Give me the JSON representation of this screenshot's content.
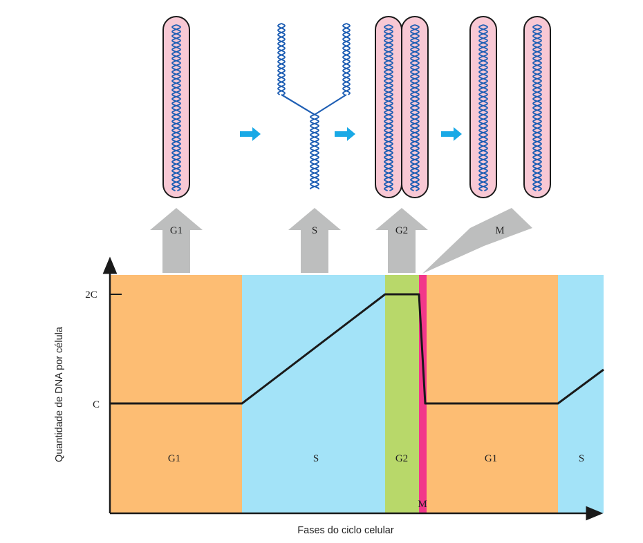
{
  "colors": {
    "g1": "#fdbd73",
    "s": "#a3e3f8",
    "g2": "#b8d86a",
    "m": "#f2378a",
    "curve": "#1a1a1a",
    "chromosome_fill": "#f8c8d4",
    "helix": "#1f5fb4",
    "phase_arrow": "#bdbebe",
    "step_arrow": "#19a9e6"
  },
  "axes": {
    "y_title": "Quantidade de DNA por célula",
    "x_title": "Fases do ciclo celular",
    "y_ticks": [
      "C",
      "2C"
    ]
  },
  "phase_bands": [
    {
      "name": "G1",
      "color_key": "g1"
    },
    {
      "name": "S",
      "color_key": "s"
    },
    {
      "name": "G2",
      "color_key": "g2"
    },
    {
      "name": "M",
      "color_key": "m"
    },
    {
      "name": "G1",
      "color_key": "g1"
    },
    {
      "name": "S",
      "color_key": "s"
    }
  ],
  "phase_callouts": [
    "G1",
    "S",
    "G2",
    "M"
  ],
  "chart_data": {
    "type": "line",
    "y_levels": [
      "C",
      "2C"
    ],
    "segments": [
      {
        "phase": "G1",
        "dna": "C (constant)"
      },
      {
        "phase": "S",
        "dna": "C → 2C (rising)"
      },
      {
        "phase": "G2",
        "dna": "2C (constant)"
      },
      {
        "phase": "M",
        "dna": "2C → C (falling)"
      },
      {
        "phase": "G1",
        "dna": "C (constant)"
      },
      {
        "phase": "S",
        "dna": "C → 2C (rising)"
      }
    ]
  }
}
